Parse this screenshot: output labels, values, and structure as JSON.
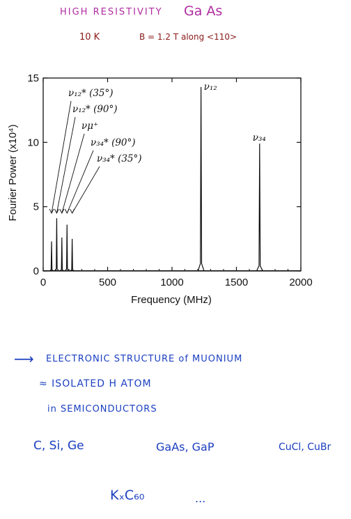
{
  "header": {
    "line1_prefix": "HIGH RESISTIVITY",
    "line1_material": "Ga As",
    "line2_temp": "10 K",
    "line2_field": "B = 1.2 T  along <110>"
  },
  "notes": {
    "arrow": "⟶",
    "line1": "ELECTRONIC  STRUCTURE  of  MUONIUM",
    "line2": "≈  ISOLATED   H  ATOM",
    "line3": "in   SEMICONDUCTORS",
    "materials_1": "C,  Si,  Ge",
    "materials_2": "GaAs,  GaP",
    "materials_3": "CuCl, CuBr",
    "materials_4": "KₓC₆₀",
    "ellipsis": "..."
  },
  "colors": {
    "magenta": "#b02ca0",
    "darkred": "#8a1a1a",
    "blue": "#1a3fc0",
    "ink": "#111111"
  },
  "chart_data": {
    "type": "line",
    "xlabel": "Frequency (MHz)",
    "ylabel": "Fourier  Power  (x10⁴)",
    "xlim": [
      0,
      2000
    ],
    "ylim": [
      0,
      15
    ],
    "xticks": [
      0,
      500,
      1000,
      1500,
      2000
    ],
    "yticks": [
      0,
      5,
      10,
      15
    ],
    "grid": false,
    "peaks": [
      {
        "x": 65,
        "y": 2.3
      },
      {
        "x": 105,
        "y": 4.1
      },
      {
        "x": 145,
        "y": 2.6
      },
      {
        "x": 185,
        "y": 3.6
      },
      {
        "x": 225,
        "y": 2.5
      },
      {
        "x": 1225,
        "y": 14.3
      },
      {
        "x": 1680,
        "y": 9.9
      }
    ],
    "annotations": [
      {
        "label": "ν₁₂* (35°)",
        "x_target": 65
      },
      {
        "label": "ν₁₂* (90°)",
        "x_target": 105
      },
      {
        "label": "νμ⁺",
        "x_target": 145
      },
      {
        "label": "ν₃₄* (90°)",
        "x_target": 185
      },
      {
        "label": "ν₃₄* (35°)",
        "x_target": 225
      },
      {
        "label": "ν₁₂",
        "x_target": 1225
      },
      {
        "label": "ν₃₄",
        "x_target": 1680
      }
    ]
  }
}
